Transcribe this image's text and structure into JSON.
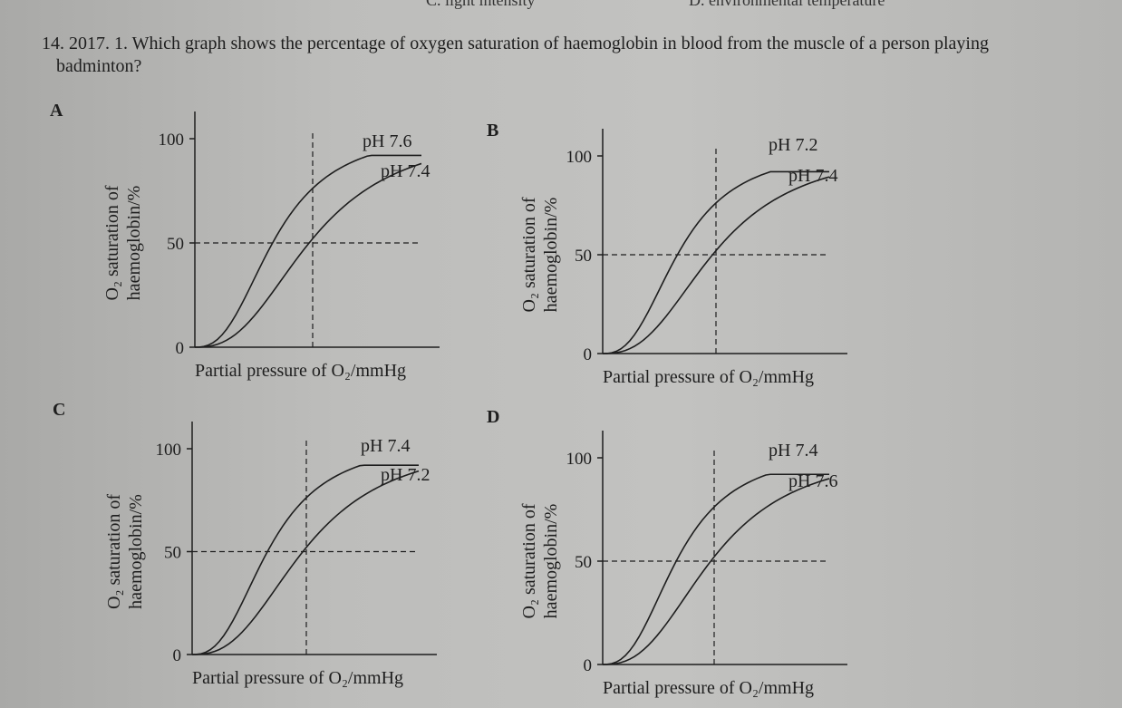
{
  "top_options": [
    "C. light intensity",
    "D. environmental temperature"
  ],
  "question": {
    "number": "14.",
    "text": "2017. 1. Which graph shows the percentage of oxygen saturation of haemoglobin in blood from the muscle of a person playing badminton?"
  },
  "graphs": [
    {
      "letter": "A",
      "curve_labels": [
        "pH 7.6",
        "pH 7.4"
      ]
    },
    {
      "letter": "B",
      "curve_labels": [
        "pH 7.2",
        "pH 7.4"
      ]
    },
    {
      "letter": "C",
      "curve_labels": [
        "pH 7.4",
        "pH 7.2"
      ]
    },
    {
      "letter": "D",
      "curve_labels": [
        "pH 7.4",
        "pH 7.6"
      ]
    }
  ],
  "axis": {
    "y_ticks": [
      "100",
      "50",
      "0"
    ],
    "ylabel_line1": "O₂ saturation of",
    "ylabel_line2": "haemoglobin/%",
    "xlabel": "Partial pressure of O₂/mmHg"
  },
  "colors": {
    "ink": "#1e1e1e",
    "paper": "#bdbdbb"
  }
}
